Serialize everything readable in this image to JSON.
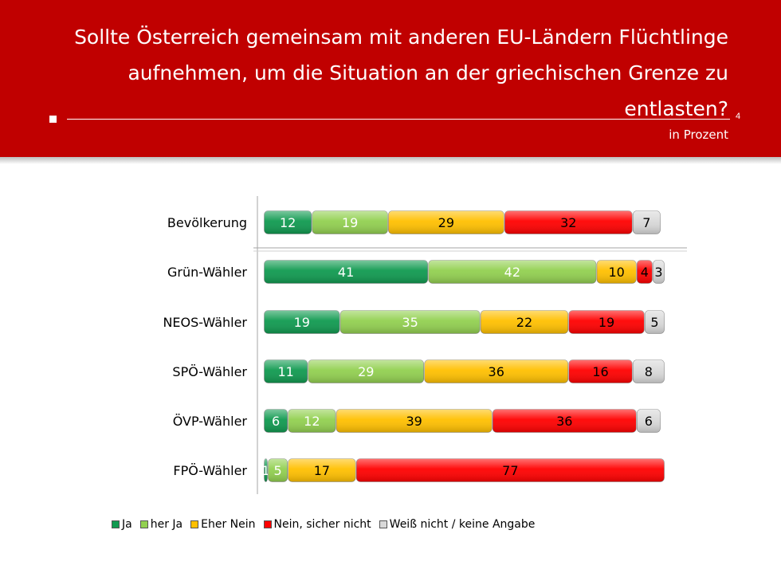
{
  "header": {
    "title_lines": [
      "Sollte Österreich gemeinsam mit anderen EU-Ländern Flüchtlinge",
      "aufnehmen, um die Situation an der griechischen Grenze zu",
      "entlasten?"
    ],
    "page_number": "4",
    "subtitle": "in Prozent"
  },
  "chart_data": {
    "type": "bar",
    "orientation": "horizontal",
    "stacked": true,
    "categories": [
      "Bevölkerung",
      "Grün-Wähler",
      "NEOS-Wähler",
      "SPÖ-Wähler",
      "ÖVP-Wähler",
      "FPÖ-Wähler"
    ],
    "series": [
      {
        "name": "Ja",
        "color": "#109a50",
        "values": [
          12,
          41,
          19,
          11,
          6,
          1
        ]
      },
      {
        "name": "her Ja",
        "color": "#92d050",
        "values": [
          19,
          42,
          35,
          29,
          12,
          5
        ]
      },
      {
        "name": "Eher Nein",
        "color": "#ffc000",
        "values": [
          29,
          10,
          22,
          36,
          39,
          17
        ]
      },
      {
        "name": "Nein, sicher nicht",
        "color": "#ff0000",
        "values": [
          32,
          4,
          19,
          16,
          36,
          77
        ]
      },
      {
        "name": "Weiß nicht / keine Angabe",
        "color": "#d9d9d9",
        "values": [
          7,
          3,
          5,
          8,
          6,
          0
        ]
      }
    ],
    "value_label_colors": [
      "#ffffff",
      "#ffffff",
      "#000000",
      "#000000",
      "#000000"
    ],
    "xlim": [
      0,
      100
    ],
    "grid": false,
    "legend_position": "bottom"
  }
}
